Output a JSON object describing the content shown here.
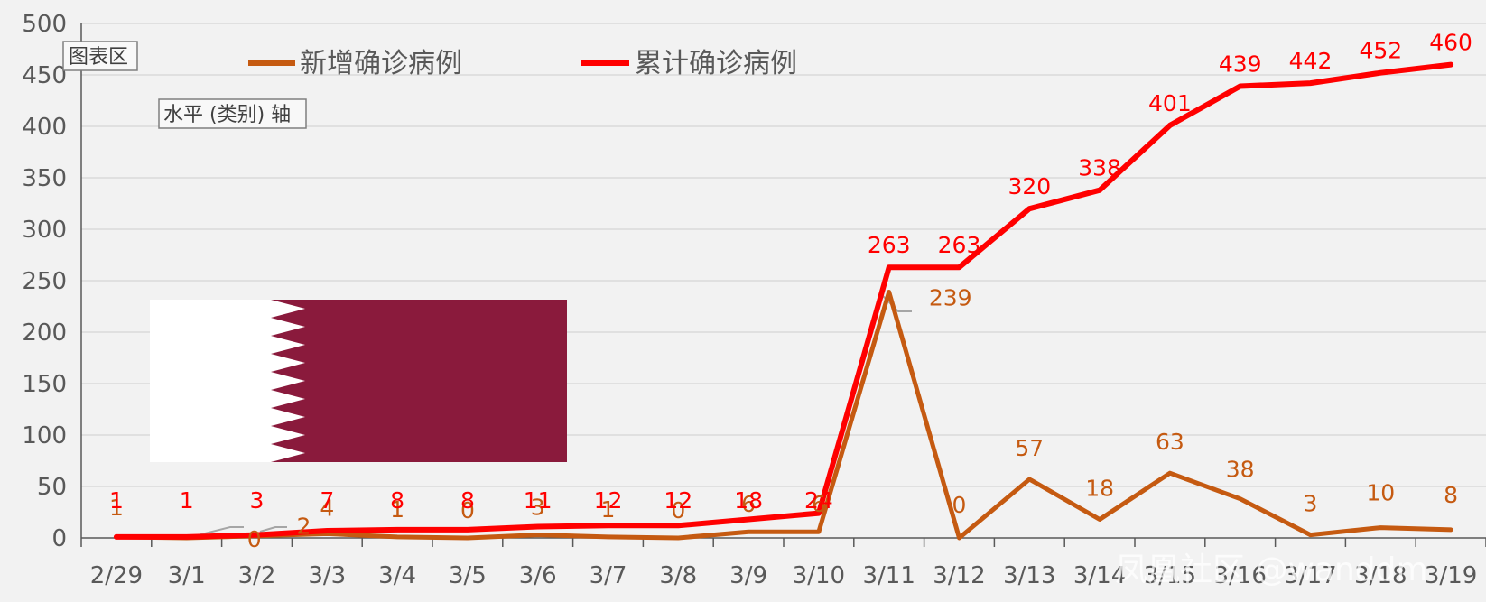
{
  "tags": {
    "plot_area": "图表区",
    "category_axis": "水平 (类别) 轴"
  },
  "watermark": "凤凰社区 @wanddm",
  "colors": {
    "new": "#c55a11",
    "cumulative": "#ff0000",
    "flag_maroon": "#8a1a3c",
    "flag_white": "#ffffff",
    "grid": "#d9d9d9",
    "background": "#f2f2f2"
  },
  "chart_data": {
    "type": "line",
    "title": "",
    "xlabel": "",
    "ylabel": "",
    "ylim": [
      0,
      500
    ],
    "yticks": [
      0,
      50,
      100,
      150,
      200,
      250,
      300,
      350,
      400,
      450,
      500
    ],
    "grid": true,
    "legend_position": "top",
    "categories": [
      "2/29",
      "3/1",
      "3/2",
      "3/3",
      "3/4",
      "3/5",
      "3/6",
      "3/7",
      "3/8",
      "3/9",
      "3/10",
      "3/11",
      "3/12",
      "3/13",
      "3/14",
      "3/15",
      "3/16",
      "3/17",
      "3/18",
      "3/19"
    ],
    "series": [
      {
        "name": "新增确诊病例",
        "values": [
          1,
          0,
          2,
          4,
          1,
          0,
          3,
          1,
          0,
          6,
          6,
          239,
          0,
          57,
          18,
          63,
          38,
          3,
          10,
          8
        ]
      },
      {
        "name": "累计确诊病例",
        "values": [
          1,
          1,
          3,
          7,
          8,
          8,
          11,
          12,
          12,
          18,
          24,
          263,
          263,
          320,
          338,
          401,
          439,
          442,
          452,
          460
        ]
      }
    ]
  }
}
